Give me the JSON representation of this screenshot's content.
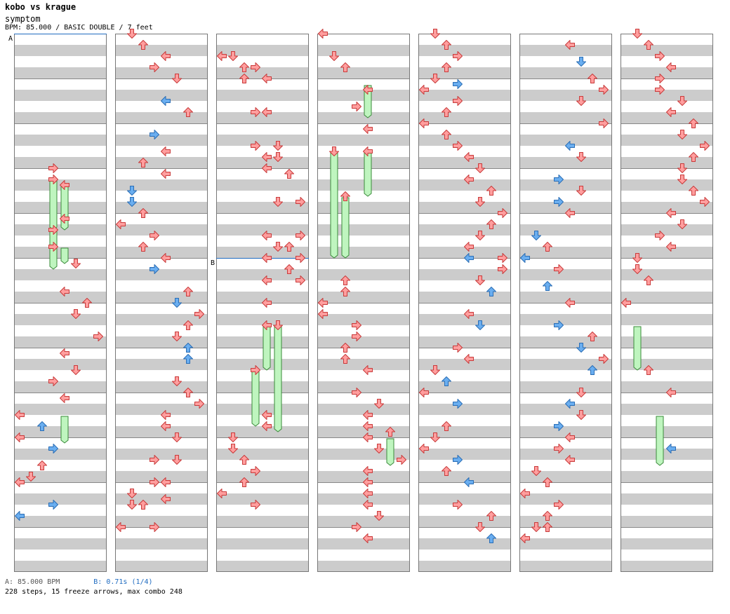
{
  "header": {
    "title": "kobo vs krague",
    "song": "symptom",
    "info": "BPM: 85.000 / BASIC DOUBLE / 7 feet"
  },
  "footer": {
    "bpm_label": "A: 85.000 BPM",
    "stop_label": "B: 0.71s (1/4)",
    "stats": "228 steps, 15 freeze arrows, max combo 248"
  },
  "markers": [
    {
      "label": "A",
      "column": 0,
      "measure": 0
    },
    {
      "label": "B",
      "column": 2,
      "measure": 5
    }
  ],
  "colors": {
    "arrow_quarter": "#ff9e9e",
    "arrow_eighth": "#6aaef0",
    "freeze": "#bff5bf",
    "stripe": "#cccccc",
    "marker_line": "#1f6bc0"
  },
  "chart_data": {
    "type": "table",
    "columns": 7,
    "measures_per_column": 12,
    "lanes": [
      "L",
      "D",
      "U",
      "R",
      "L",
      "D",
      "U",
      "R"
    ],
    "note_format": "[column, beat_in_column, lane, is_blue]",
    "notes": [
      [
        0,
        12,
        3,
        0
      ],
      [
        0,
        13,
        3,
        0
      ],
      [
        0,
        13.5,
        4,
        0
      ],
      [
        0,
        16.5,
        4,
        0
      ],
      [
        0,
        17.5,
        3,
        0
      ],
      [
        0,
        19,
        3,
        0
      ],
      [
        0,
        20.5,
        5,
        0
      ],
      [
        0,
        23,
        4,
        0
      ],
      [
        0,
        24,
        6,
        0
      ],
      [
        0,
        25,
        5,
        0
      ],
      [
        0,
        27,
        7,
        0
      ],
      [
        0,
        28.5,
        4,
        0
      ],
      [
        0,
        30,
        5,
        0
      ],
      [
        0,
        31,
        3,
        0
      ],
      [
        0,
        32.5,
        4,
        0
      ],
      [
        0,
        34,
        0,
        0
      ],
      [
        0,
        35,
        2,
        1
      ],
      [
        0,
        36,
        0,
        0
      ],
      [
        0,
        37,
        3,
        1
      ],
      [
        0,
        38.5,
        2,
        0
      ],
      [
        0,
        39.5,
        1,
        0
      ],
      [
        0,
        40,
        0,
        0
      ],
      [
        0,
        42,
        3,
        1
      ],
      [
        0,
        43,
        0,
        1
      ],
      [
        1,
        0,
        1,
        0
      ],
      [
        1,
        1,
        2,
        0
      ],
      [
        1,
        2,
        4,
        0
      ],
      [
        1,
        3,
        3,
        0
      ],
      [
        1,
        4,
        5,
        0
      ],
      [
        1,
        6,
        4,
        1
      ],
      [
        1,
        7,
        6,
        0
      ],
      [
        1,
        9,
        3,
        1
      ],
      [
        1,
        10.5,
        4,
        0
      ],
      [
        1,
        11.5,
        2,
        0
      ],
      [
        1,
        12.5,
        4,
        0
      ],
      [
        1,
        14,
        1,
        1
      ],
      [
        1,
        15,
        1,
        1
      ],
      [
        1,
        16,
        2,
        0
      ],
      [
        1,
        17,
        0,
        0
      ],
      [
        1,
        18,
        3,
        0
      ],
      [
        1,
        19,
        2,
        0
      ],
      [
        1,
        20,
        4,
        0
      ],
      [
        1,
        21,
        3,
        1
      ],
      [
        1,
        23,
        6,
        0
      ],
      [
        1,
        24,
        5,
        1
      ],
      [
        1,
        25,
        7,
        0
      ],
      [
        1,
        26,
        6,
        0
      ],
      [
        1,
        27,
        5,
        0
      ],
      [
        1,
        28,
        6,
        1
      ],
      [
        1,
        29,
        6,
        1
      ],
      [
        1,
        31,
        5,
        0
      ],
      [
        1,
        32,
        6,
        0
      ],
      [
        1,
        33,
        7,
        0
      ],
      [
        1,
        34,
        4,
        0
      ],
      [
        1,
        35,
        4,
        0
      ],
      [
        1,
        36,
        5,
        0
      ],
      [
        1,
        38,
        3,
        0
      ],
      [
        1,
        38,
        5,
        0
      ],
      [
        1,
        40,
        3,
        0
      ],
      [
        1,
        40,
        4,
        0
      ],
      [
        1,
        41,
        1,
        0
      ],
      [
        1,
        41.5,
        4,
        0
      ],
      [
        1,
        42,
        1,
        0
      ],
      [
        1,
        42,
        2,
        0
      ],
      [
        1,
        44,
        0,
        0
      ],
      [
        1,
        44,
        3,
        0
      ],
      [
        2,
        2,
        0,
        0
      ],
      [
        2,
        2,
        1,
        0
      ],
      [
        2,
        3,
        2,
        0
      ],
      [
        2,
        3,
        3,
        0
      ],
      [
        2,
        4,
        2,
        0
      ],
      [
        2,
        4,
        4,
        0
      ],
      [
        2,
        7,
        3,
        0
      ],
      [
        2,
        7,
        4,
        0
      ],
      [
        2,
        10,
        3,
        0
      ],
      [
        2,
        10,
        5,
        0
      ],
      [
        2,
        11,
        4,
        0
      ],
      [
        2,
        11,
        5,
        0
      ],
      [
        2,
        12,
        4,
        0
      ],
      [
        2,
        12.5,
        6,
        0
      ],
      [
        2,
        15,
        5,
        0
      ],
      [
        2,
        15,
        7,
        0
      ],
      [
        2,
        18,
        4,
        0
      ],
      [
        2,
        18,
        7,
        0
      ],
      [
        2,
        19,
        5,
        0
      ],
      [
        2,
        19,
        6,
        0
      ],
      [
        2,
        20,
        4,
        0
      ],
      [
        2,
        20,
        7,
        0
      ],
      [
        2,
        21,
        6,
        0
      ],
      [
        2,
        22,
        4,
        0
      ],
      [
        2,
        22,
        7,
        0
      ],
      [
        2,
        24,
        4,
        0
      ],
      [
        2,
        26,
        4,
        0
      ],
      [
        2,
        26,
        5,
        0
      ],
      [
        2,
        30,
        3,
        0
      ],
      [
        2,
        34,
        4,
        0
      ],
      [
        2,
        35,
        4,
        0
      ],
      [
        2,
        36,
        1,
        0
      ],
      [
        2,
        37,
        1,
        0
      ],
      [
        2,
        38,
        2,
        0
      ],
      [
        2,
        39,
        3,
        0
      ],
      [
        2,
        40,
        2,
        0
      ],
      [
        2,
        41,
        0,
        0
      ],
      [
        2,
        42,
        3,
        0
      ],
      [
        3,
        0,
        0,
        0
      ],
      [
        3,
        2,
        1,
        0
      ],
      [
        3,
        3,
        2,
        0
      ],
      [
        3,
        5,
        4,
        0
      ],
      [
        3,
        6.5,
        3,
        0
      ],
      [
        3,
        8.5,
        4,
        0
      ],
      [
        3,
        10.5,
        1,
        0
      ],
      [
        3,
        10.5,
        4,
        0
      ],
      [
        3,
        14.5,
        2,
        0
      ],
      [
        3,
        22,
        2,
        0
      ],
      [
        3,
        23,
        2,
        0
      ],
      [
        3,
        24,
        0,
        0
      ],
      [
        3,
        25,
        0,
        0
      ],
      [
        3,
        26,
        3,
        0
      ],
      [
        3,
        27,
        3,
        0
      ],
      [
        3,
        28,
        2,
        0
      ],
      [
        3,
        29,
        2,
        0
      ],
      [
        3,
        30,
        4,
        0
      ],
      [
        3,
        32,
        3,
        0
      ],
      [
        3,
        33,
        5,
        0
      ],
      [
        3,
        34,
        4,
        0
      ],
      [
        3,
        35,
        4,
        0
      ],
      [
        3,
        35.5,
        6,
        0
      ],
      [
        3,
        36,
        4,
        0
      ],
      [
        3,
        37,
        5,
        0
      ],
      [
        3,
        38,
        7,
        0
      ],
      [
        3,
        39,
        4,
        0
      ],
      [
        3,
        40,
        4,
        0
      ],
      [
        3,
        41,
        4,
        0
      ],
      [
        3,
        42,
        4,
        0
      ],
      [
        3,
        43,
        5,
        0
      ],
      [
        3,
        44,
        3,
        0
      ],
      [
        3,
        45,
        4,
        0
      ],
      [
        4,
        0,
        1,
        0
      ],
      [
        4,
        1,
        2,
        0
      ],
      [
        4,
        2,
        3,
        0
      ],
      [
        4,
        3,
        2,
        0
      ],
      [
        4,
        4,
        1,
        0
      ],
      [
        4,
        4.5,
        3,
        1
      ],
      [
        4,
        5,
        0,
        0
      ],
      [
        4,
        6,
        3,
        0
      ],
      [
        4,
        7,
        2,
        0
      ],
      [
        4,
        8,
        0,
        0
      ],
      [
        4,
        9,
        2,
        0
      ],
      [
        4,
        10,
        3,
        0
      ],
      [
        4,
        11,
        4,
        0
      ],
      [
        4,
        12,
        5,
        0
      ],
      [
        4,
        13,
        4,
        0
      ],
      [
        4,
        14,
        6,
        0
      ],
      [
        4,
        15,
        5,
        0
      ],
      [
        4,
        16,
        7,
        0
      ],
      [
        4,
        17,
        6,
        0
      ],
      [
        4,
        18,
        5,
        0
      ],
      [
        4,
        19,
        4,
        0
      ],
      [
        4,
        20,
        4,
        1
      ],
      [
        4,
        20,
        7,
        0
      ],
      [
        4,
        21,
        7,
        0
      ],
      [
        4,
        22,
        5,
        0
      ],
      [
        4,
        23,
        6,
        1
      ],
      [
        4,
        25,
        4,
        0
      ],
      [
        4,
        26,
        5,
        1
      ],
      [
        4,
        28,
        3,
        0
      ],
      [
        4,
        29,
        4,
        0
      ],
      [
        4,
        30,
        1,
        0
      ],
      [
        4,
        31,
        2,
        1
      ],
      [
        4,
        32,
        0,
        0
      ],
      [
        4,
        33,
        3,
        1
      ],
      [
        4,
        35,
        2,
        0
      ],
      [
        4,
        36,
        1,
        0
      ],
      [
        4,
        37,
        0,
        0
      ],
      [
        4,
        38,
        3,
        1
      ],
      [
        4,
        39,
        2,
        0
      ],
      [
        4,
        40,
        4,
        1
      ],
      [
        4,
        42,
        3,
        0
      ],
      [
        4,
        43,
        6,
        0
      ],
      [
        4,
        44,
        5,
        0
      ],
      [
        4,
        45,
        6,
        1
      ],
      [
        5,
        1,
        4,
        0
      ],
      [
        5,
        2.5,
        5,
        1
      ],
      [
        5,
        4,
        6,
        0
      ],
      [
        5,
        5,
        7,
        0
      ],
      [
        5,
        6,
        5,
        0
      ],
      [
        5,
        8,
        7,
        0
      ],
      [
        5,
        10,
        4,
        1
      ],
      [
        5,
        11,
        5,
        0
      ],
      [
        5,
        13,
        3,
        1
      ],
      [
        5,
        14,
        5,
        0
      ],
      [
        5,
        15,
        3,
        1
      ],
      [
        5,
        16,
        4,
        0
      ],
      [
        5,
        18,
        1,
        1
      ],
      [
        5,
        19,
        2,
        0
      ],
      [
        5,
        20,
        0,
        1
      ],
      [
        5,
        21,
        3,
        0
      ],
      [
        5,
        22.5,
        2,
        1
      ],
      [
        5,
        24,
        4,
        0
      ],
      [
        5,
        26,
        3,
        1
      ],
      [
        5,
        27,
        6,
        0
      ],
      [
        5,
        28,
        5,
        1
      ],
      [
        5,
        29,
        7,
        0
      ],
      [
        5,
        30,
        6,
        1
      ],
      [
        5,
        32,
        5,
        0
      ],
      [
        5,
        33,
        4,
        1
      ],
      [
        5,
        34,
        5,
        0
      ],
      [
        5,
        35,
        3,
        1
      ],
      [
        5,
        36,
        4,
        0
      ],
      [
        5,
        37,
        3,
        0
      ],
      [
        5,
        38,
        4,
        0
      ],
      [
        5,
        39,
        1,
        0
      ],
      [
        5,
        40,
        2,
        0
      ],
      [
        5,
        41,
        0,
        0
      ],
      [
        5,
        42,
        3,
        0
      ],
      [
        5,
        43,
        2,
        0
      ],
      [
        5,
        44,
        2,
        0
      ],
      [
        5,
        44,
        1,
        0
      ],
      [
        5,
        45,
        0,
        0
      ],
      [
        6,
        0,
        1,
        0
      ],
      [
        6,
        1,
        2,
        0
      ],
      [
        6,
        2,
        3,
        0
      ],
      [
        6,
        3,
        4,
        0
      ],
      [
        6,
        4,
        3,
        0
      ],
      [
        6,
        5,
        3,
        0
      ],
      [
        6,
        6,
        5,
        0
      ],
      [
        6,
        7,
        4,
        0
      ],
      [
        6,
        8,
        6,
        0
      ],
      [
        6,
        9,
        5,
        0
      ],
      [
        6,
        10,
        7,
        0
      ],
      [
        6,
        11,
        6,
        0
      ],
      [
        6,
        12,
        5,
        0
      ],
      [
        6,
        13,
        5,
        0
      ],
      [
        6,
        14,
        6,
        0
      ],
      [
        6,
        15,
        7,
        0
      ],
      [
        6,
        16,
        4,
        0
      ],
      [
        6,
        17,
        5,
        0
      ],
      [
        6,
        18,
        3,
        0
      ],
      [
        6,
        19,
        4,
        0
      ],
      [
        6,
        20,
        1,
        0
      ],
      [
        6,
        21,
        1,
        0
      ],
      [
        6,
        22,
        2,
        0
      ],
      [
        6,
        24,
        0,
        0
      ],
      [
        6,
        30,
        2,
        0
      ],
      [
        6,
        32,
        4,
        0
      ],
      [
        6,
        37,
        4,
        1
      ]
    ],
    "freezes_format": "[column, lane, start_beat, end_beat]",
    "freezes": [
      [
        0,
        3,
        13,
        17
      ],
      [
        0,
        4,
        13.5,
        17
      ],
      [
        0,
        3,
        17.5,
        20.5
      ],
      [
        0,
        4,
        19,
        20
      ],
      [
        0,
        4,
        34,
        36
      ],
      [
        2,
        4,
        26,
        29.5
      ],
      [
        2,
        5,
        26,
        35
      ],
      [
        2,
        3,
        30,
        34.5
      ],
      [
        3,
        4,
        4.5,
        7
      ],
      [
        3,
        1,
        10.5,
        19.5
      ],
      [
        3,
        4,
        10.5,
        14
      ],
      [
        3,
        2,
        14.5,
        19.5
      ],
      [
        3,
        6,
        36,
        38
      ],
      [
        6,
        1,
        26,
        29.5
      ],
      [
        6,
        3,
        34,
        38
      ]
    ]
  }
}
